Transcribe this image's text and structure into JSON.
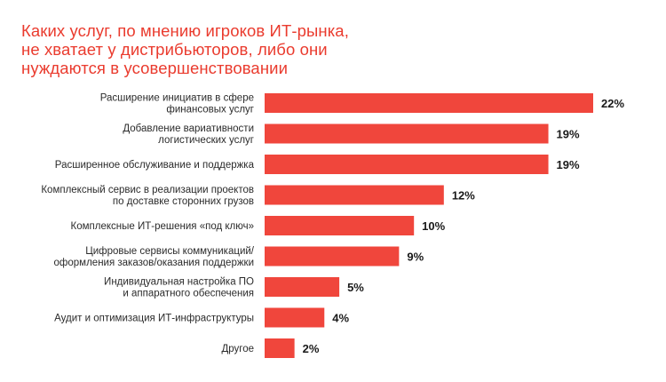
{
  "colors": {
    "title": "#ea3b2e",
    "bar": "#f0463c"
  },
  "chart_data": {
    "type": "bar",
    "orientation": "horizontal",
    "title": [
      "Каких услуг, по мнению игроков ИТ-рынка,",
      "не хватает у дистрибьюторов, либо они",
      "нуждаются в усовершенствовании"
    ],
    "categories": [
      [
        "Расширение инициатив в сфере",
        "финансовых услуг"
      ],
      [
        "Добавление вариативности",
        "логистических услуг"
      ],
      [
        "Расширенное обслуживание и поддержка"
      ],
      [
        "Комплексный сервис в реализации проектов",
        "по доставке сторонних грузов"
      ],
      [
        "Комплексные ИТ-решения «под ключ»"
      ],
      [
        "Цифровые сервисы коммуникаций/",
        "оформления заказов/оказания поддержки"
      ],
      [
        "Индивидуальная настройка ПО",
        "и аппаратного обеспечения"
      ],
      [
        "Аудит и оптимизация ИТ-инфраструктуры"
      ],
      [
        "Другое"
      ]
    ],
    "values": [
      22,
      19,
      19,
      12,
      10,
      9,
      5,
      4,
      2
    ],
    "value_labels": [
      "22%",
      "19%",
      "19%",
      "12%",
      "10%",
      "9%",
      "5%",
      "4%",
      "2%"
    ],
    "unit": "%",
    "xlim": [
      0,
      22
    ],
    "grid": false,
    "legend": "none"
  }
}
